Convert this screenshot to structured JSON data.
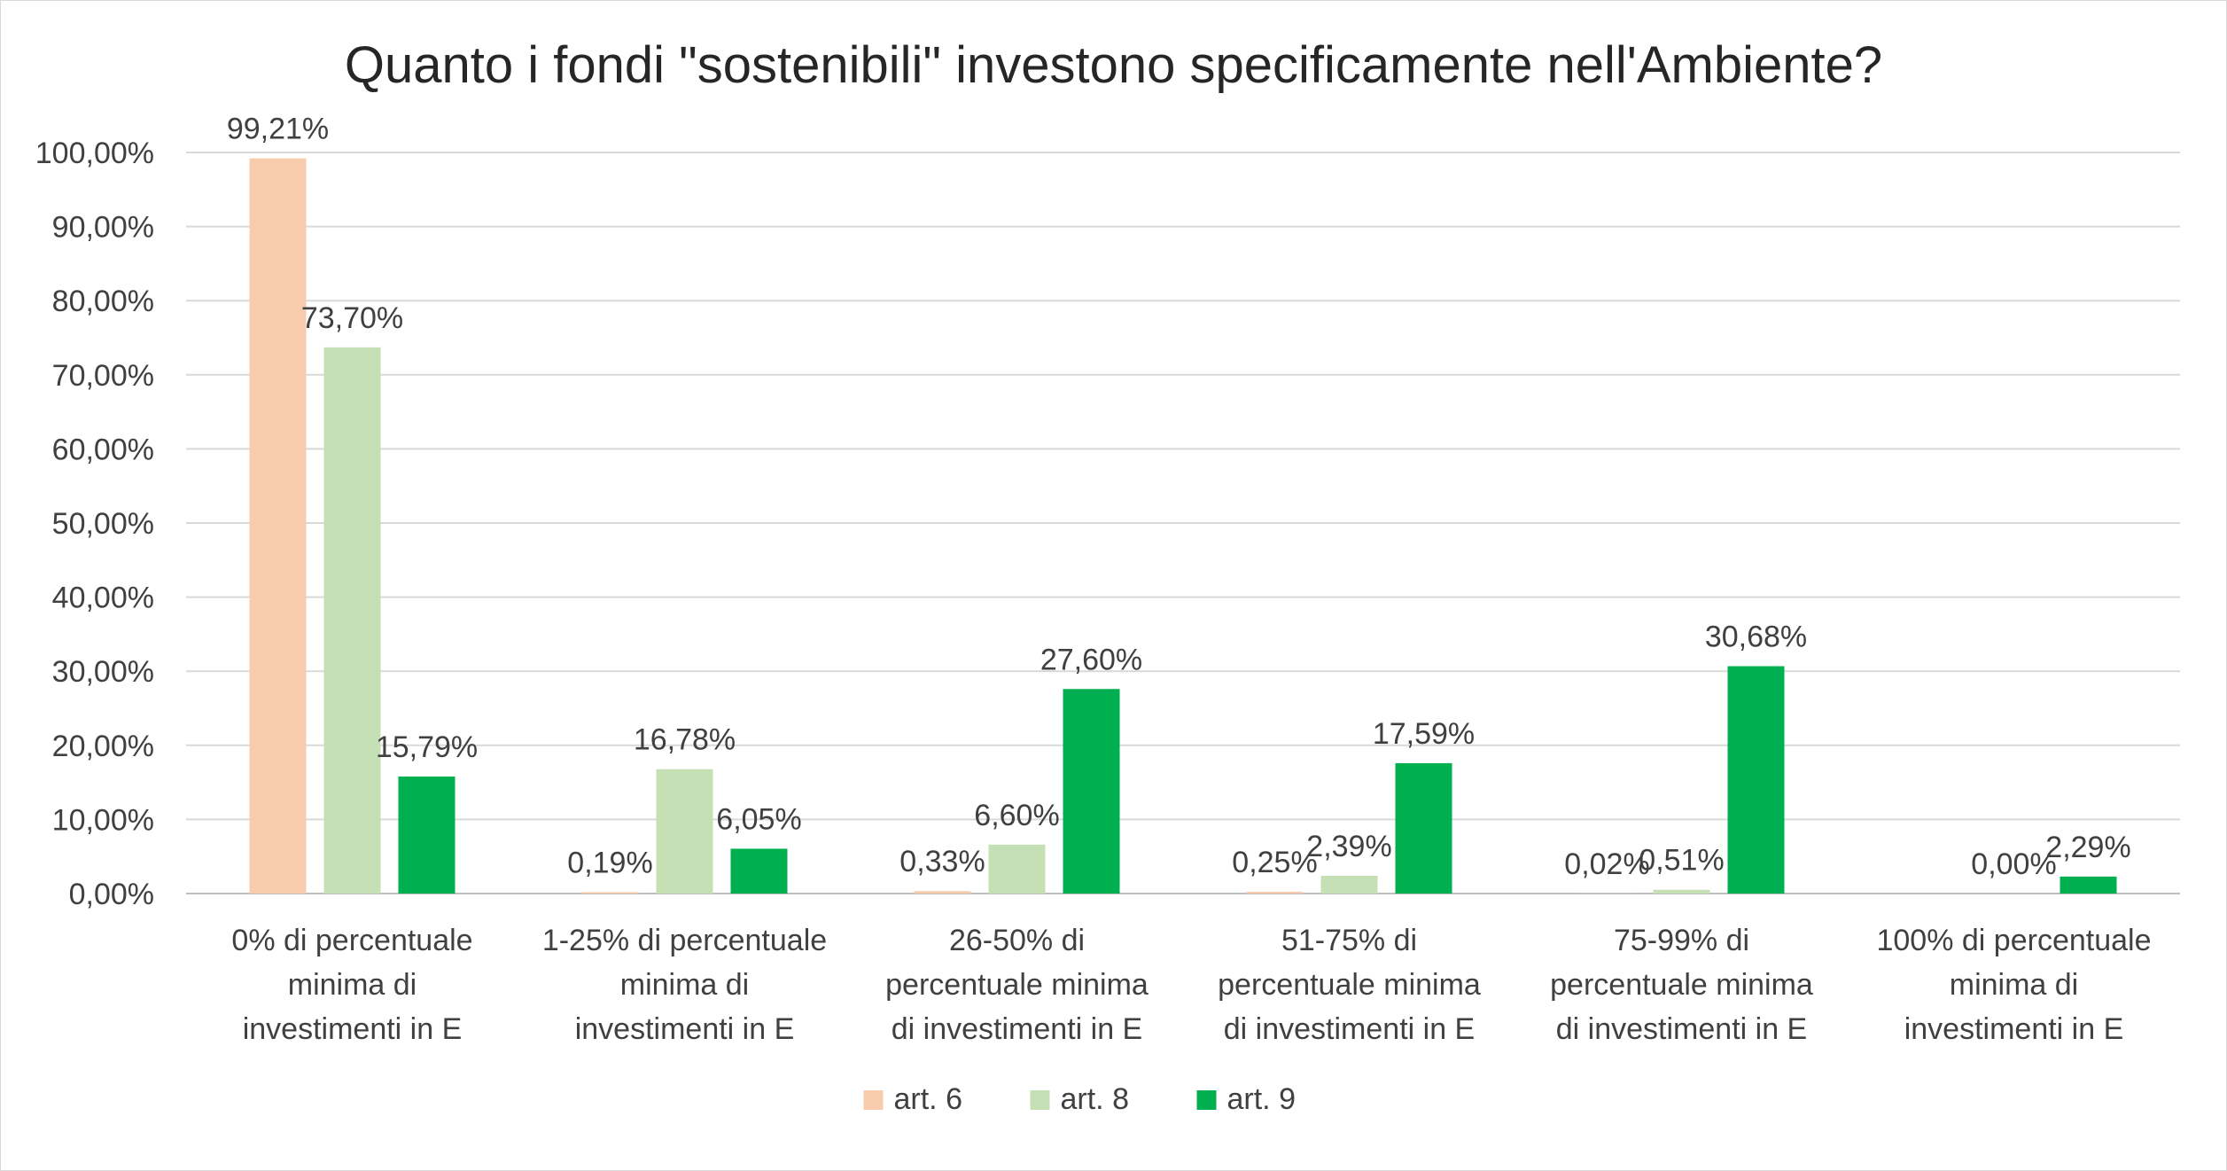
{
  "chart_data": {
    "type": "bar",
    "title": "Quanto i fondi \"sostenibili\" investono specificamente nell'Ambiente?",
    "xlabel": "",
    "ylabel": "",
    "ylim": [
      0,
      100
    ],
    "yticks": [
      "0,00%",
      "10,00%",
      "20,00%",
      "30,00%",
      "40,00%",
      "50,00%",
      "60,00%",
      "70,00%",
      "80,00%",
      "90,00%",
      "100,00%"
    ],
    "categories": [
      [
        "0% di percentuale",
        "minima di",
        "investimenti in E"
      ],
      [
        "1-25% di percentuale",
        "minima di",
        "investimenti in E"
      ],
      [
        "26-50% di",
        "percentuale minima",
        "di investimenti in E"
      ],
      [
        "51-75% di",
        "percentuale minima",
        "di investimenti in E"
      ],
      [
        "75-99% di",
        "percentuale minima",
        "di investimenti in E"
      ],
      [
        "100% di percentuale",
        "minima di",
        "investimenti in E"
      ]
    ],
    "series": [
      {
        "name": "art. 6",
        "color": "#f8cbad",
        "values": [
          99.21,
          0.19,
          0.33,
          0.25,
          0.02,
          null
        ],
        "labels": [
          "99,21%",
          "0,19%",
          "0,33%",
          "0,25%",
          "0,02%",
          ""
        ]
      },
      {
        "name": "art. 8",
        "color": "#c5e0b4",
        "values": [
          73.7,
          16.78,
          6.6,
          2.39,
          0.51,
          0.0
        ],
        "labels": [
          "73,70%",
          "16,78%",
          "6,60%",
          "2,39%",
          "0,51%",
          "0,00%"
        ]
      },
      {
        "name": "art. 9",
        "color": "#00b050",
        "values": [
          15.79,
          6.05,
          27.6,
          17.59,
          30.68,
          2.29
        ],
        "labels": [
          "15,79%",
          "6,05%",
          "27,60%",
          "17,59%",
          "30,68%",
          "2,29%"
        ]
      }
    ],
    "grid": true,
    "legend_position": "bottom"
  }
}
